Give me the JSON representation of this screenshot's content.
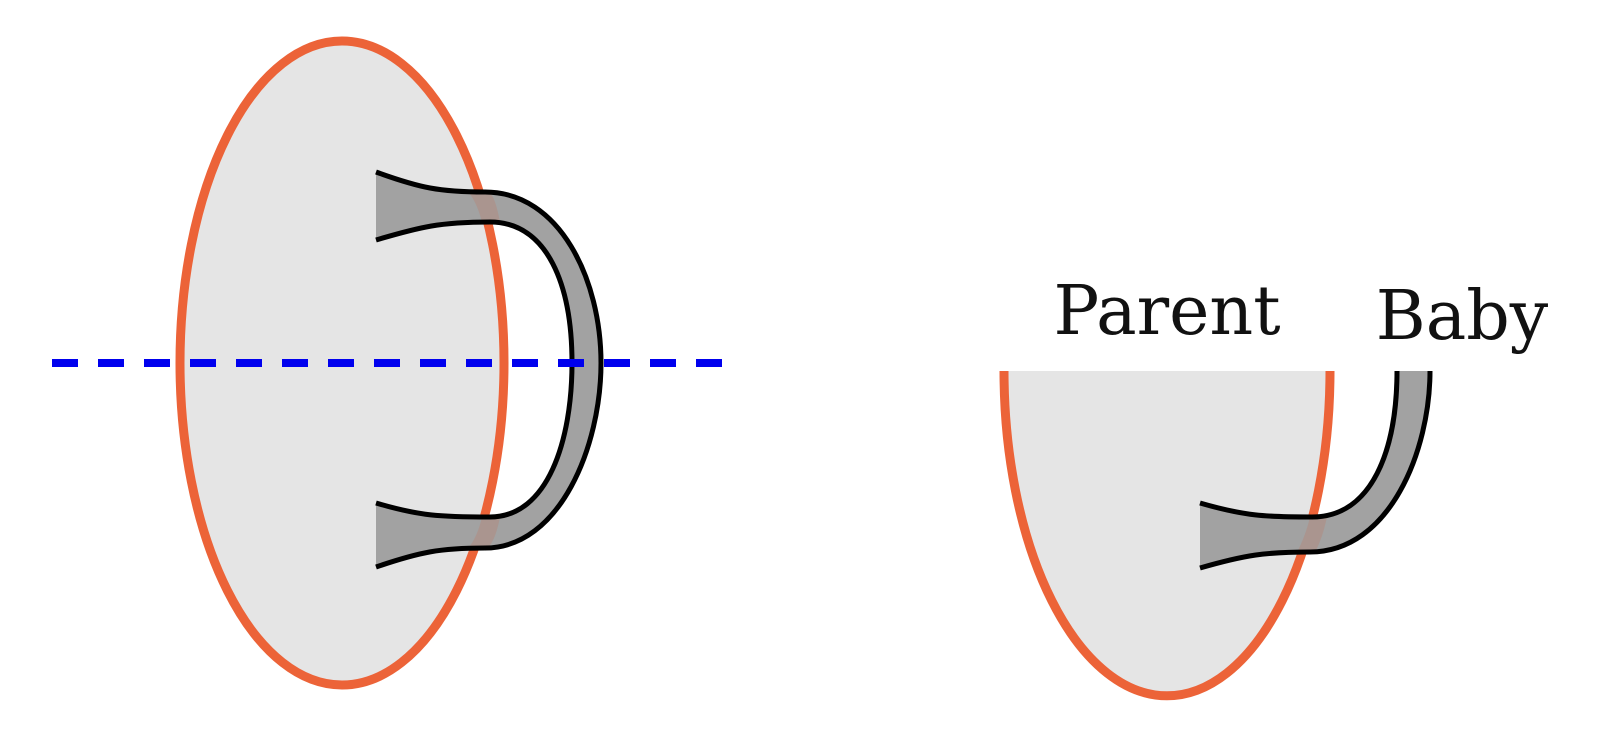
{
  "labels": {
    "parent": "Parent",
    "baby": "Baby"
  },
  "colors": {
    "disk_fill": "#e5e5e5",
    "disk_outline": "#ec6338",
    "handle_fill": "#a2a2a2",
    "handle_outline": "#000000",
    "cut_line": "#0000ee",
    "overlap_tint": "#b08a80"
  }
}
